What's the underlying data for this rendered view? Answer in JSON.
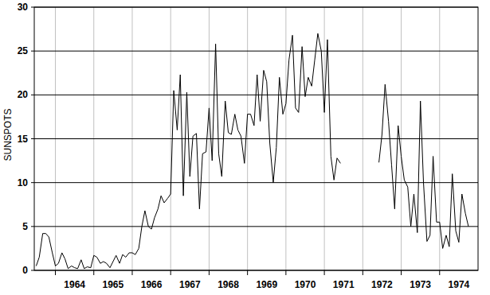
{
  "chart_data": {
    "type": "line",
    "y_label": "SUNSPOTS",
    "color": "#000000",
    "grid": true,
    "xlim": [
      1963.45,
      1975
    ],
    "ylim": [
      0,
      30
    ],
    "xticks": [
      1964,
      1965,
      1966,
      1967,
      1968,
      1969,
      1970,
      1971,
      1972,
      1973,
      1974
    ],
    "yticks": [
      0,
      5,
      10,
      15,
      20,
      25,
      30
    ],
    "x": [
      1963.5,
      1963.58,
      1963.67,
      1963.75,
      1963.83,
      1963.92,
      1964.0,
      1964.08,
      1964.17,
      1964.25,
      1964.33,
      1964.42,
      1964.5,
      1964.58,
      1964.67,
      1964.75,
      1964.83,
      1964.92,
      1965.0,
      1965.08,
      1965.17,
      1965.25,
      1965.33,
      1965.42,
      1965.5,
      1965.58,
      1965.67,
      1965.75,
      1965.83,
      1965.92,
      1966.0,
      1966.08,
      1966.17,
      1966.25,
      1966.33,
      1966.42,
      1966.5,
      1966.58,
      1966.67,
      1966.75,
      1966.83,
      1966.92,
      1967.0,
      1967.08,
      1967.17,
      1967.25,
      1967.33,
      1967.42,
      1967.5,
      1967.58,
      1967.67,
      1967.75,
      1967.83,
      1967.92,
      1968.0,
      1968.08,
      1968.17,
      1968.25,
      1968.33,
      1968.42,
      1968.5,
      1968.58,
      1968.67,
      1968.75,
      1968.83,
      1968.92,
      1969.0,
      1969.08,
      1969.17,
      1969.25,
      1969.33,
      1969.42,
      1969.5,
      1969.58,
      1969.67,
      1969.75,
      1969.83,
      1969.92,
      1970.0,
      1970.08,
      1970.17,
      1970.25,
      1970.33,
      1970.42,
      1970.5,
      1970.58,
      1970.67,
      1970.75,
      1970.83,
      1970.92,
      1971.0,
      1971.08,
      1971.17,
      1971.25,
      1971.33,
      1971.42,
      1971.5,
      1971.58,
      1971.67,
      1971.75,
      1971.83,
      1971.92,
      1972.0,
      1972.08,
      1972.17,
      1972.25,
      1972.33,
      1972.42,
      1972.5,
      1972.58,
      1972.67,
      1972.75,
      1972.83,
      1972.92,
      1973.0,
      1973.08,
      1973.17,
      1973.25,
      1973.33,
      1973.42,
      1973.5,
      1973.58,
      1973.67,
      1973.75,
      1973.83,
      1973.92,
      1974.0,
      1974.08,
      1974.17,
      1974.25,
      1974.33,
      1974.42,
      1974.5,
      1974.58,
      1974.67,
      1974.75
    ],
    "values": [
      0.5,
      1.5,
      4.2,
      4.2,
      3.8,
      2.0,
      0.5,
      0.8,
      2.0,
      1.3,
      0.2,
      0.5,
      0.3,
      0.2,
      1.2,
      0.2,
      0.4,
      0.3,
      1.7,
      1.5,
      0.8,
      1.0,
      0.8,
      0.3,
      1.0,
      1.7,
      0.8,
      1.8,
      1.5,
      2.0,
      2.0,
      1.8,
      2.5,
      5.0,
      6.8,
      5.0,
      4.7,
      6.0,
      7.0,
      8.5,
      7.7,
      8.2,
      8.7,
      20.5,
      16.0,
      22.3,
      8.5,
      20.3,
      10.7,
      15.3,
      15.6,
      7.0,
      13.3,
      13.5,
      18.5,
      12.5,
      25.8,
      13.3,
      10.7,
      19.3,
      15.7,
      15.5,
      17.8,
      16.0,
      15.3,
      12.2,
      17.8,
      17.8,
      16.5,
      22.3,
      17.0,
      22.8,
      21.5,
      14.5,
      10.0,
      14.0,
      22.0,
      17.8,
      19.0,
      24.0,
      26.8,
      18.5,
      18.0,
      25.5,
      19.8,
      22.0,
      21.0,
      24.0,
      27.0,
      25.0,
      18.0,
      26.3,
      13.0,
      10.3,
      12.8,
      12.2,
      null,
      null,
      null,
      null,
      null,
      null,
      null,
      null,
      null,
      null,
      null,
      12.3,
      15.5,
      21.2,
      17.0,
      12.0,
      7.0,
      16.5,
      13.0,
      10.3,
      9.5,
      5.0,
      8.7,
      4.3,
      19.3,
      10.0,
      3.3,
      4.0,
      13.0,
      5.5,
      5.5,
      2.5,
      4.0,
      2.7,
      11.0,
      4.5,
      3.2,
      8.7,
      6.5,
      5.0
    ]
  }
}
